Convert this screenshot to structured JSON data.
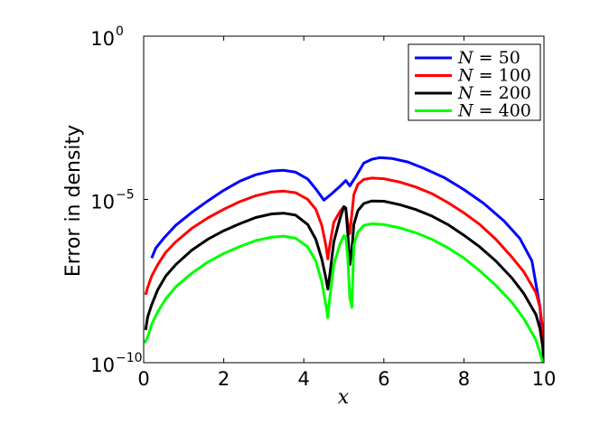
{
  "chart_data": {
    "type": "line",
    "xlabel": "x",
    "ylabel": "Error in density",
    "xlim": [
      0,
      10
    ],
    "ylim": [
      1e-10,
      1
    ],
    "yscale": "log",
    "grid": false,
    "legend_position": "top-right",
    "x_ticks": [
      "0",
      "2",
      "4",
      "6",
      "8",
      "10"
    ],
    "y_ticks": [
      {
        "base": "10",
        "exp": "0",
        "value": 1
      },
      {
        "base": "10",
        "exp": "−5",
        "value": 1e-05
      },
      {
        "base": "10",
        "exp": "−10",
        "value": 1e-10
      }
    ],
    "series": [
      {
        "name": "N = 50",
        "var": "N",
        "rel": "=",
        "num": "50",
        "color": "#0000ff",
        "x": [
          0.2,
          0.3,
          0.5,
          0.8,
          1.2,
          1.6,
          2.0,
          2.4,
          2.8,
          3.2,
          3.5,
          3.8,
          4.1,
          4.3,
          4.5,
          4.7,
          4.9,
          5.05,
          5.15,
          5.3,
          5.5,
          5.7,
          5.9,
          6.2,
          6.6,
          7.0,
          7.5,
          8.0,
          8.5,
          9.0,
          9.4,
          9.7,
          9.9,
          10.0
        ],
        "y": [
          1.6e-07,
          3.2e-07,
          6.5e-07,
          1.6e-06,
          4e-06,
          9e-06,
          1.9e-05,
          3.6e-05,
          5.7e-05,
          7.4e-05,
          7.8e-05,
          6.8e-05,
          4.2e-05,
          2.1e-05,
          9.5e-06,
          1.5e-05,
          2.5e-05,
          3.8e-05,
          2.6e-05,
          5e-05,
          0.00013,
          0.00017,
          0.00019,
          0.00018,
          0.00014,
          9e-05,
          4.7e-05,
          2e-05,
          7.5e-06,
          2.2e-06,
          6.3e-07,
          1.3e-07,
          5e-09,
          1e-10
        ]
      },
      {
        "name": "N = 100",
        "var": "N",
        "rel": "=",
        "num": "100",
        "color": "#ff0000",
        "x": [
          0.05,
          0.1,
          0.2,
          0.35,
          0.55,
          0.8,
          1.2,
          1.6,
          2.0,
          2.4,
          2.8,
          3.2,
          3.5,
          3.8,
          4.1,
          4.3,
          4.45,
          4.55,
          4.6,
          4.65,
          4.75,
          4.9,
          5.0,
          5.05,
          5.1,
          5.15,
          5.2,
          5.25,
          5.35,
          5.5,
          5.7,
          6.0,
          6.4,
          6.8,
          7.2,
          7.6,
          8.0,
          8.4,
          8.8,
          9.2,
          9.5,
          9.8,
          9.9,
          9.97,
          10.0
        ],
        "y": [
          1.2e-08,
          2e-08,
          4.5e-08,
          1e-07,
          2.4e-07,
          5e-07,
          1.3e-06,
          2.7e-06,
          5e-06,
          8.5e-06,
          1.3e-05,
          1.7e-05,
          1.8e-05,
          1.6e-05,
          1e-05,
          5e-06,
          1.6e-06,
          4e-07,
          1.5e-07,
          4e-07,
          2e-06,
          4.2e-06,
          6e-06,
          5e-06,
          1.8e-06,
          9e-07,
          3.6e-06,
          1.4e-05,
          2.9e-05,
          4.1e-05,
          4.5e-05,
          4.3e-05,
          3.4e-05,
          2.4e-05,
          1.5e-05,
          8e-06,
          3.9e-06,
          1.7e-06,
          6e-07,
          1.7e-07,
          6e-08,
          1.4e-08,
          5e-09,
          1e-09,
          1e-10
        ]
      },
      {
        "name": "N = 200",
        "var": "N",
        "rel": "=",
        "num": "200",
        "color": "#000000",
        "x": [
          0.05,
          0.1,
          0.2,
          0.35,
          0.55,
          0.8,
          1.2,
          1.6,
          2.0,
          2.4,
          2.8,
          3.2,
          3.5,
          3.8,
          4.1,
          4.3,
          4.45,
          4.55,
          4.6,
          4.65,
          4.75,
          4.9,
          5.0,
          5.05,
          5.1,
          5.15,
          5.2,
          5.25,
          5.35,
          5.5,
          5.7,
          6.0,
          6.4,
          6.8,
          7.2,
          7.6,
          8.0,
          8.4,
          8.8,
          9.2,
          9.5,
          9.8,
          9.9,
          9.97,
          10.0
        ],
        "y": [
          1e-09,
          2.5e-09,
          6e-09,
          1.7e-08,
          4.5e-08,
          1e-07,
          2.8e-07,
          6e-07,
          1.1e-06,
          1.8e-06,
          2.8e-06,
          3.6e-06,
          3.8e-06,
          3.3e-06,
          1.7e-06,
          6e-07,
          1.5e-07,
          4e-08,
          1.8e-08,
          5e-08,
          5e-07,
          2.5e-06,
          6e-06,
          5.5e-06,
          9e-07,
          1e-07,
          3e-07,
          1.7e-06,
          4.5e-06,
          7.5e-06,
          9e-06,
          8.8e-06,
          6.9e-06,
          4.9e-06,
          3.1e-06,
          1.7e-06,
          8e-07,
          3.5e-07,
          1.3e-07,
          3.9e-08,
          1.3e-08,
          3e-09,
          1.1e-09,
          3e-10,
          1e-10
        ]
      },
      {
        "name": "N = 400",
        "var": "N",
        "rel": "=",
        "num": "400",
        "color": "#00ff00",
        "x": [
          0.02,
          0.1,
          0.2,
          0.35,
          0.55,
          0.8,
          1.2,
          1.6,
          2.0,
          2.4,
          2.8,
          3.2,
          3.5,
          3.8,
          4.1,
          4.3,
          4.45,
          4.55,
          4.6,
          4.65,
          4.75,
          4.9,
          5.0,
          5.05,
          5.1,
          5.15,
          5.2,
          5.25,
          5.35,
          5.5,
          5.7,
          6.0,
          6.4,
          6.8,
          7.2,
          7.6,
          8.0,
          8.4,
          8.8,
          9.2,
          9.5,
          9.8,
          9.9,
          9.97,
          10.0
        ],
        "y": [
          4e-10,
          6e-10,
          1.5e-09,
          3.6e-09,
          9e-09,
          2.1e-08,
          5.5e-08,
          1.2e-07,
          2.2e-07,
          3.6e-07,
          5.5e-07,
          7e-07,
          7.5e-07,
          6.5e-07,
          3.5e-07,
          1.3e-07,
          3e-08,
          6e-09,
          2.4e-09,
          1e-08,
          1e-07,
          4.2e-07,
          7.8e-07,
          7e-07,
          1.6e-07,
          1e-08,
          5e-09,
          4e-07,
          1e-06,
          1.6e-06,
          1.8e-06,
          1.7e-06,
          1.35e-06,
          9.5e-07,
          6e-07,
          3.3e-07,
          1.6e-07,
          6.5e-08,
          2.3e-08,
          7e-09,
          2.2e-09,
          5e-10,
          2e-10,
          1e-10,
          1e-10
        ]
      }
    ]
  }
}
